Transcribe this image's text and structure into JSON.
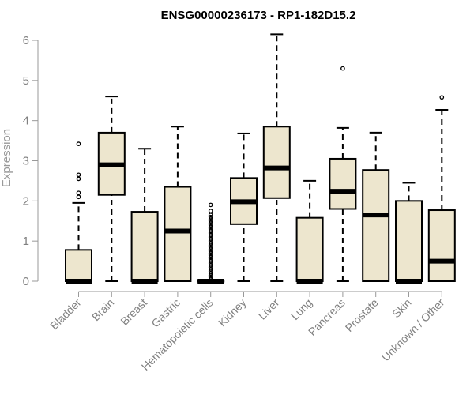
{
  "chart_data": {
    "type": "box",
    "title": "ENSG00000236173 - RP1-182D15.2",
    "xlabel": "",
    "ylabel": "Expression",
    "ylim": [
      0,
      6.2
    ],
    "yticks": [
      0,
      1,
      2,
      3,
      4,
      5,
      6
    ],
    "grid": false,
    "box_fill": "#EDE6CE",
    "box_stroke": "#000000",
    "axis_color": "#999999",
    "categories": [
      "Bladder",
      "Brain",
      "Breast",
      "Gastric",
      "Hematopoietic cells",
      "Kidney",
      "Liver",
      "Lung",
      "Pancreas",
      "Prostate",
      "Skin",
      "Unknown / Other"
    ],
    "boxes": [
      {
        "category": "Bladder",
        "min": 0,
        "q1": 0,
        "median": 0,
        "q3": 0.78,
        "max": 1.95,
        "outliers": [
          2.1,
          2.2,
          2.55,
          2.65,
          3.42
        ]
      },
      {
        "category": "Brain",
        "min": 0,
        "q1": 2.15,
        "median": 2.9,
        "q3": 3.7,
        "max": 4.6,
        "outliers": []
      },
      {
        "category": "Breast",
        "min": 0,
        "q1": 0,
        "median": 0,
        "q3": 1.73,
        "max": 3.3,
        "outliers": []
      },
      {
        "category": "Gastric",
        "min": 0,
        "q1": 0,
        "median": 1.25,
        "q3": 2.35,
        "max": 3.85,
        "outliers": []
      },
      {
        "category": "Hematopoietic cells",
        "min": 0,
        "q1": 0,
        "median": 0,
        "q3": 0,
        "max": 0,
        "outliers": [
          0.05,
          0.1,
          0.15,
          0.2,
          0.25,
          0.3,
          0.35,
          0.4,
          0.45,
          0.5,
          0.55,
          0.6,
          0.65,
          0.7,
          0.75,
          0.8,
          0.85,
          0.9,
          0.95,
          1.0,
          1.05,
          1.1,
          1.15,
          1.2,
          1.25,
          1.3,
          1.35,
          1.4,
          1.45,
          1.5,
          1.55,
          1.6,
          1.65,
          1.75,
          1.9
        ]
      },
      {
        "category": "Kidney",
        "min": 0,
        "q1": 1.42,
        "median": 1.98,
        "q3": 2.57,
        "max": 3.68,
        "outliers": []
      },
      {
        "category": "Liver",
        "min": 0,
        "q1": 2.07,
        "median": 2.82,
        "q3": 3.85,
        "max": 6.15,
        "outliers": []
      },
      {
        "category": "Lung",
        "min": 0,
        "q1": 0,
        "median": 0,
        "q3": 1.58,
        "max": 2.5,
        "outliers": []
      },
      {
        "category": "Pancreas",
        "min": 0,
        "q1": 1.8,
        "median": 2.24,
        "q3": 3.05,
        "max": 3.82,
        "outliers": [
          5.3
        ]
      },
      {
        "category": "Prostate",
        "min": 0,
        "q1": 0,
        "median": 1.65,
        "q3": 2.77,
        "max": 3.7,
        "outliers": []
      },
      {
        "category": "Skin",
        "min": 0,
        "q1": 0,
        "median": 0,
        "q3": 2.0,
        "max": 2.45,
        "outliers": []
      },
      {
        "category": "Unknown / Other",
        "min": 0,
        "q1": 0,
        "median": 0.5,
        "q3": 1.77,
        "max": 4.27,
        "outliers": [
          4.58
        ]
      }
    ]
  }
}
